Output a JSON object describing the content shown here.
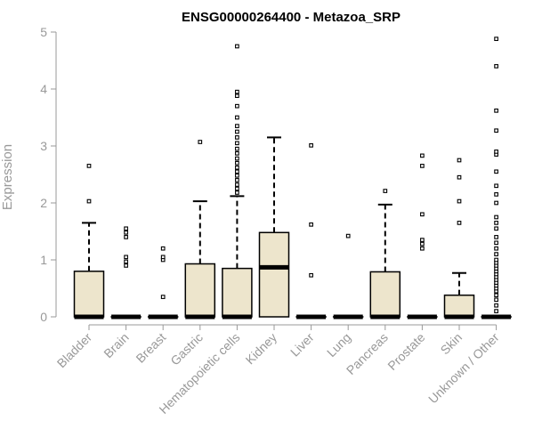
{
  "chart_data": {
    "type": "box",
    "title": "ENSG00000264400 - Metazoa_SRP",
    "ylabel": "Expression",
    "xlabel": "",
    "ylim": [
      0,
      5
    ],
    "yticks": [
      0,
      1,
      2,
      3,
      4,
      5
    ],
    "box_fill": "#ede5cc",
    "categories": [
      "Bladder",
      "Brain",
      "Breast",
      "Gastric",
      "Hematopoietic cells",
      "Kidney",
      "Liver",
      "Lung",
      "Pancreas",
      "Prostate",
      "Skin",
      "Unknown / Other"
    ],
    "boxes": [
      {
        "q1": 0,
        "median": 0,
        "q3": 0.8,
        "whisker_low": 0,
        "whisker_high": 1.65,
        "outliers": [
          2.03,
          2.65
        ]
      },
      {
        "q1": 0,
        "median": 0,
        "q3": 0,
        "whisker_low": 0,
        "whisker_high": 0,
        "outliers": [
          0.9,
          0.97,
          1.05,
          1.4,
          1.48,
          1.55
        ]
      },
      {
        "q1": 0,
        "median": 0,
        "q3": 0,
        "whisker_low": 0,
        "whisker_high": 0,
        "outliers": [
          0.35,
          1.0,
          1.05,
          1.2
        ]
      },
      {
        "q1": 0,
        "median": 0,
        "q3": 0.93,
        "whisker_low": 0,
        "whisker_high": 2.03,
        "outliers": [
          3.07
        ]
      },
      {
        "q1": 0,
        "median": 0,
        "q3": 0.85,
        "whisker_low": 0,
        "whisker_high": 2.12,
        "outliers": [
          2.18,
          2.25,
          2.32,
          2.4,
          2.48,
          2.55,
          2.62,
          2.7,
          2.78,
          2.87,
          2.95,
          3.05,
          3.15,
          3.25,
          3.35,
          3.5,
          3.7,
          3.88,
          3.95,
          4.75
        ]
      },
      {
        "q1": 0,
        "median": 0.87,
        "q3": 1.48,
        "whisker_low": 0,
        "whisker_high": 3.15,
        "outliers": []
      },
      {
        "q1": 0,
        "median": 0,
        "q3": 0,
        "whisker_low": 0,
        "whisker_high": 0,
        "outliers": [
          0.73,
          1.62,
          3.01
        ]
      },
      {
        "q1": 0,
        "median": 0,
        "q3": 0,
        "whisker_low": 0,
        "whisker_high": 0,
        "outliers": [
          1.42
        ]
      },
      {
        "q1": 0,
        "median": 0,
        "q3": 0.79,
        "whisker_low": 0,
        "whisker_high": 1.97,
        "outliers": [
          2.21
        ]
      },
      {
        "q1": 0,
        "median": 0,
        "q3": 0,
        "whisker_low": 0,
        "whisker_high": 0,
        "outliers": [
          1.2,
          1.28,
          1.35,
          1.8,
          2.65,
          2.83
        ]
      },
      {
        "q1": 0,
        "median": 0,
        "q3": 0.38,
        "whisker_low": 0,
        "whisker_high": 0.77,
        "outliers": [
          1.65,
          2.03,
          2.45,
          2.75
        ]
      },
      {
        "q1": 0,
        "median": 0,
        "q3": 0,
        "whisker_low": 0,
        "whisker_high": 0,
        "outliers": [
          0.1,
          0.2,
          0.3,
          0.38,
          0.45,
          0.5,
          0.55,
          0.6,
          0.65,
          0.7,
          0.75,
          0.8,
          0.85,
          0.9,
          0.95,
          1.0,
          1.1,
          1.2,
          1.3,
          1.4,
          1.55,
          1.65,
          1.75,
          2.0,
          2.15,
          2.3,
          2.55,
          2.85,
          2.9,
          3.27,
          3.62,
          4.4,
          4.88
        ]
      }
    ]
  }
}
